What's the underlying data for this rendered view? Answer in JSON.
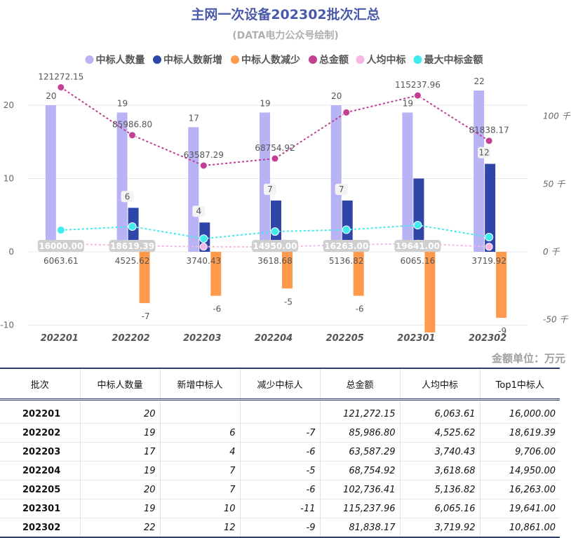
{
  "title": "主网一次设备202302批次汇总",
  "subtitle": "(DATA电力公众号绘制)",
  "unit_note": "金额单位：万元",
  "colors": {
    "count": "#b8b3f5",
    "added": "#2f45a8",
    "reduced": "#ff9a4d",
    "total": "#c23f94",
    "avg": "#f5b6e3",
    "max": "#3fecee"
  },
  "chart_data": {
    "type": "bar",
    "categories": [
      "202201",
      "202202",
      "202203",
      "202204",
      "202205",
      "202301",
      "202302"
    ],
    "left_axis": {
      "ylim": [
        -10,
        25
      ],
      "ticks": [
        "-10",
        "0",
        "10",
        "20"
      ]
    },
    "right_axis": {
      "ylim": [
        -60000,
        150000
      ],
      "ticks": [
        "-50 千",
        "0 千",
        "50 千",
        "100 千"
      ]
    },
    "series": [
      {
        "name": "中标人数量",
        "type": "bar",
        "axis": "left",
        "values": [
          20,
          19,
          17,
          19,
          20,
          19,
          22
        ],
        "labels": [
          "20",
          "19",
          "17",
          "19",
          "20",
          "19",
          "22"
        ]
      },
      {
        "name": "中标人数新增",
        "type": "bar",
        "axis": "left",
        "values": [
          null,
          6,
          4,
          7,
          7,
          10,
          12
        ],
        "labels": [
          "",
          "6",
          "4",
          "7",
          "7",
          "",
          "12"
        ]
      },
      {
        "name": "中标人数减少",
        "type": "bar",
        "axis": "left",
        "values": [
          null,
          -7,
          -6,
          -5,
          -6,
          -11,
          -9
        ],
        "labels": [
          "",
          "-7",
          "-6",
          "-5",
          "-6",
          "",
          "-9"
        ]
      },
      {
        "name": "总金额",
        "type": "line",
        "axis": "right",
        "values": [
          121272.15,
          85986.8,
          63587.29,
          68754.92,
          102736.41,
          115237.96,
          81838.17
        ],
        "labels": [
          "121272.15",
          "85986.80",
          "63587.29",
          "68754.92",
          "",
          "115237.96",
          "81838.17"
        ]
      },
      {
        "name": "人均中标",
        "type": "line",
        "axis": "right",
        "values": [
          6063.61,
          4525.62,
          3740.43,
          3618.68,
          5136.82,
          6065.16,
          3719.92
        ],
        "labels": [
          "6063.61",
          "4525.62",
          "3740.43",
          "3618.68",
          "5136.82",
          "6065.16",
          "3719.92"
        ]
      },
      {
        "name": "最大中标金额",
        "type": "line",
        "axis": "right",
        "values": [
          16000.0,
          18619.39,
          9706.0,
          14950.0,
          16263.0,
          19641.0,
          10861.0
        ],
        "labels": [
          "16000.00",
          "18619.39",
          "",
          "14950.00",
          "16263.00",
          "19641.00",
          ""
        ]
      }
    ]
  },
  "table": {
    "headers": [
      "批次",
      "中标人数量",
      "新增中标人",
      "减少中标人",
      "总金额",
      "人均中标",
      "Top1中标人"
    ],
    "rows": [
      [
        "202201",
        "20",
        "",
        "",
        "121,272.15",
        "6,063.61",
        "16,000.00"
      ],
      [
        "202202",
        "19",
        "6",
        "-7",
        "85,986.80",
        "4,525.62",
        "18,619.39"
      ],
      [
        "202203",
        "17",
        "4",
        "-6",
        "63,587.29",
        "3,740.43",
        "9,706.00"
      ],
      [
        "202204",
        "19",
        "7",
        "-5",
        "68,754.92",
        "3,618.68",
        "14,950.00"
      ],
      [
        "202205",
        "20",
        "7",
        "-6",
        "102,736.41",
        "5,136.82",
        "16,263.00"
      ],
      [
        "202301",
        "19",
        "10",
        "-11",
        "115,237.96",
        "6,065.16",
        "19,641.00"
      ],
      [
        "202302",
        "22",
        "12",
        "-9",
        "81,838.17",
        "3,719.92",
        "10,861.00"
      ]
    ]
  }
}
